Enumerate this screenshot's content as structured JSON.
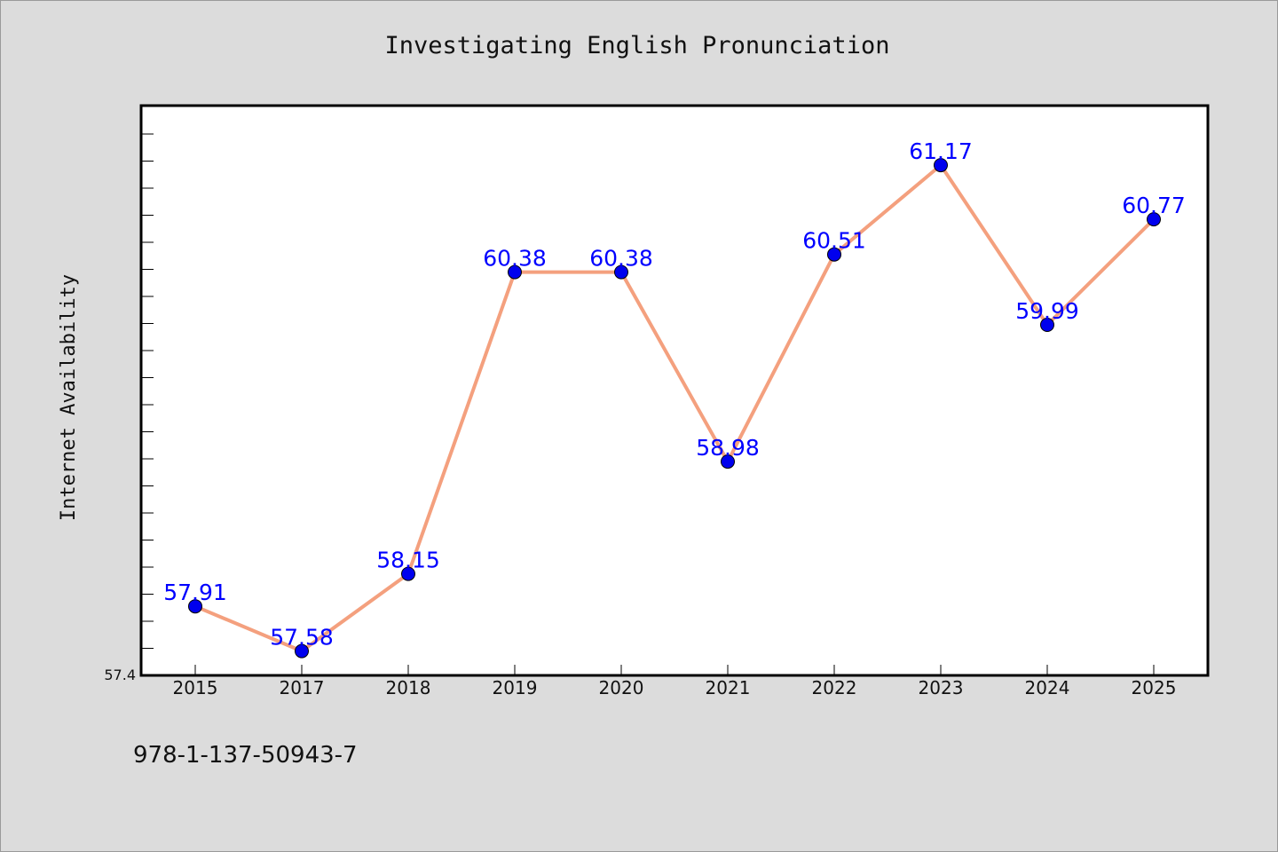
{
  "chart_data": {
    "type": "line",
    "title": "Investigating English Pronunciation",
    "ylabel": "Internet Availability",
    "xlabel": "",
    "categories": [
      "2015",
      "2017",
      "2018",
      "2019",
      "2020",
      "2021",
      "2022",
      "2023",
      "2024",
      "2025"
    ],
    "series": [
      {
        "values": [
          57.91,
          57.58,
          58.15,
          60.38,
          60.38,
          58.98,
          60.51,
          61.17,
          59.99,
          60.77
        ],
        "labels": [
          "57.91",
          "57.58",
          "58.15",
          "60.38",
          "60.38",
          "58.98",
          "60.51",
          "61.17",
          "59.99",
          "60.77"
        ],
        "line_color": "#f4a07e",
        "marker_color": "#0000ee",
        "label_color": "#0000ff"
      }
    ],
    "ylim": [
      57.4,
      61.61
    ],
    "ytick_label": "57.4",
    "grid": false,
    "legend": "none"
  },
  "footer": {
    "code": "978-1-137-50943-7"
  }
}
